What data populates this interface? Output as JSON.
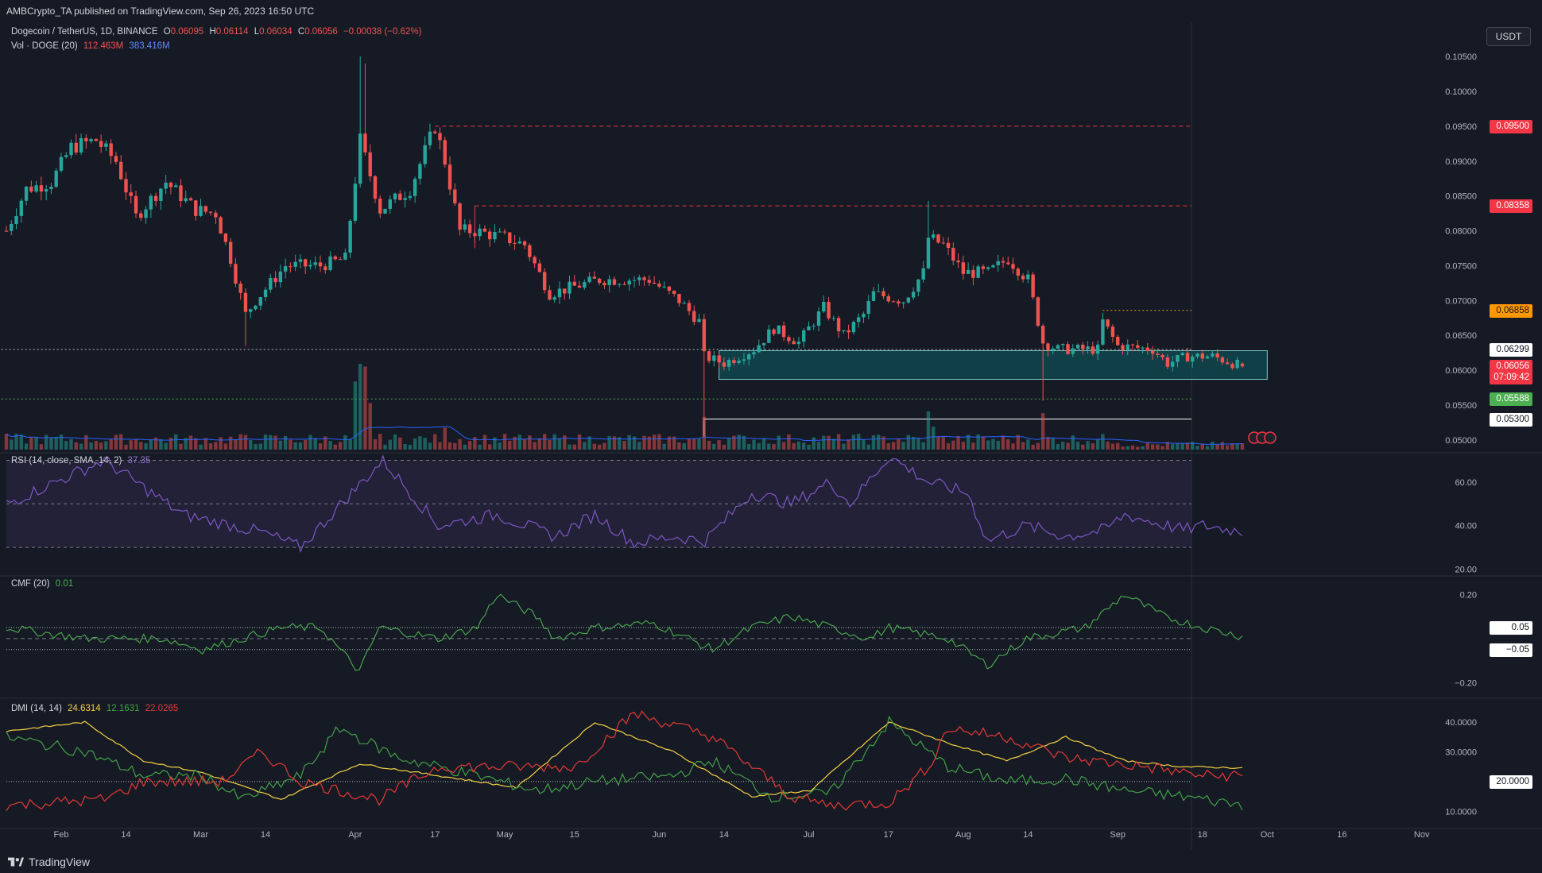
{
  "header": {
    "publish_line": "AMBCrypto_TA published on TradingView.com, Sep 26, 2023 16:50 UTC",
    "currency_button": "USDT"
  },
  "footer": {
    "brand": "TradingView"
  },
  "legend": {
    "symbol": "Dogecoin / TetherUS, 1D, BINANCE",
    "open_label": "O",
    "open": "0.06095",
    "high_label": "H",
    "high": "0.06114",
    "low_label": "L",
    "low": "0.06034",
    "close_label": "C",
    "close": "0.06056",
    "change": "−0.00038 (−0.62%)",
    "vol_title": "Vol · DOGE (20)",
    "vol_value": "112.463M",
    "vol_ma": "383.416M",
    "rsi_title": "RSI (14, close, SMA, 14, 2)",
    "rsi_value": "37.35",
    "cmf_title": "CMF (20)",
    "cmf_value": "0.01",
    "dmi_title": "DMI (14, 14)",
    "dmi_adx": "24.6314",
    "dmi_plus": "12.1631",
    "dmi_minus": "22.0265"
  },
  "price_labels": [
    {
      "text": "0.09500",
      "value": 0.095,
      "bg": "#f23645",
      "fg": "#ffffff"
    },
    {
      "text": "0.08358",
      "value": 0.08358,
      "bg": "#f23645",
      "fg": "#ffffff"
    },
    {
      "text": "0.06858",
      "value": 0.06858,
      "bg": "#ff9800",
      "fg": "#131722"
    },
    {
      "text": "0.06299",
      "value": 0.06299,
      "bg": "#ffffff",
      "fg": "#131722"
    },
    {
      "text": "0.06056",
      "value": 0.06056,
      "bg": "#f23645",
      "fg": "#ffffff",
      "sub": "07:09:42"
    },
    {
      "text": "0.05588",
      "value": 0.05588,
      "bg": "#4caf50",
      "fg": "#ffffff"
    },
    {
      "text": "0.05300",
      "value": 0.053,
      "bg": "#ffffff",
      "fg": "#131722"
    }
  ],
  "indicator_labels": {
    "cmf_upper": "0.05",
    "cmf_lower": "−0.05",
    "dmi_level": "20.0000"
  },
  "colors": {
    "up": "#26a69a",
    "down": "#ef5350",
    "background": "#161a25",
    "rsi": "#7e57c2",
    "cmf": "#4caf50",
    "adx": "#f5d142",
    "di_plus": "#43a047",
    "di_minus": "#e53935",
    "vol_ma": "#2962ff",
    "zone": "#0f5e66"
  },
  "chart_data": [
    {
      "type": "candlestick",
      "title": "Dogecoin / TetherUS, 1D, BINANCE",
      "x_ticks": [
        "Feb",
        "14",
        "Mar",
        "14",
        "Apr",
        "17",
        "May",
        "15",
        "Jun",
        "14",
        "Jul",
        "17",
        "Aug",
        "14",
        "Sep",
        "18",
        "Oct",
        "16",
        "Nov"
      ],
      "y_ticks": [
        "0.10500",
        "0.10000",
        "0.09500",
        "0.09000",
        "0.08500",
        "0.08000",
        "0.07500",
        "0.07000",
        "0.06500",
        "0.06000",
        "0.05500",
        "0.05000"
      ],
      "ylim": [
        0.0485,
        0.1065
      ],
      "horizontal_levels": [
        0.095,
        0.08358,
        0.06858,
        0.06299,
        0.05588,
        0.053
      ],
      "demand_zone": [
        0.0587,
        0.0628
      ],
      "close_anchors": [
        [
          "Jan 21",
          0.08
        ],
        [
          "Jan 25",
          0.086
        ],
        [
          "Jan 30",
          0.087
        ],
        [
          "Feb 3",
          0.092
        ],
        [
          "Feb 8",
          0.093
        ],
        [
          "Feb 12",
          0.09
        ],
        [
          "Feb 16",
          0.082
        ],
        [
          "Feb 22",
          0.087
        ],
        [
          "Feb 28",
          0.083
        ],
        [
          "Mar 4",
          0.0825
        ],
        [
          "Mar 7",
          0.076
        ],
        [
          "Mar 10",
          0.068
        ],
        [
          "Mar 12",
          0.07
        ],
        [
          "Mar 18",
          0.075
        ],
        [
          "Mar 25",
          0.075
        ],
        [
          "Mar 30",
          0.076
        ],
        [
          "Apr 2",
          0.093
        ],
        [
          "Apr 4",
          0.088
        ],
        [
          "Apr 6",
          0.083
        ],
        [
          "Apr 12",
          0.086
        ],
        [
          "Apr 17",
          0.095
        ],
        [
          "Apr 19",
          0.09
        ],
        [
          "Apr 22",
          0.08
        ],
        [
          "Apr 25",
          0.08
        ],
        [
          "May 1",
          0.079
        ],
        [
          "May 5",
          0.078
        ],
        [
          "May 10",
          0.071
        ],
        [
          "May 20",
          0.073
        ],
        [
          "May 30",
          0.073
        ],
        [
          "Jun 5",
          0.07
        ],
        [
          "Jun 9",
          0.067
        ],
        [
          "Jun 10",
          0.062
        ],
        [
          "Jun 14",
          0.061
        ],
        [
          "Jun 20",
          0.063
        ],
        [
          "Jun 24",
          0.066
        ],
        [
          "Jun 29",
          0.064
        ],
        [
          "Jul 4",
          0.069
        ],
        [
          "Jul 8",
          0.065
        ],
        [
          "Jul 12",
          0.068
        ],
        [
          "Jul 14",
          0.071
        ],
        [
          "Jul 20",
          0.07
        ],
        [
          "Jul 24",
          0.074
        ],
        [
          "Jul 25",
          0.079
        ],
        [
          "Jul 28",
          0.078
        ],
        [
          "Aug 1",
          0.074
        ],
        [
          "Aug 6",
          0.074
        ],
        [
          "Aug 10",
          0.076
        ],
        [
          "Aug 14",
          0.073
        ],
        [
          "Aug 17",
          0.064
        ],
        [
          "Aug 20",
          0.063
        ],
        [
          "Aug 28",
          0.063
        ],
        [
          "Aug 29",
          0.067
        ],
        [
          "Sep 1",
          0.0635
        ],
        [
          "Sep 8",
          0.063
        ],
        [
          "Sep 11",
          0.061
        ],
        [
          "Sep 15",
          0.062
        ],
        [
          "Sep 20",
          0.062
        ],
        [
          "Sep 26",
          0.06056
        ]
      ],
      "volume_ma_last": 383.416
    },
    {
      "type": "line",
      "title": "RSI (14, close, SMA, 14, 2)",
      "y_ticks": [
        "60.00",
        "40.00",
        "20.00"
      ],
      "ylim": [
        18,
        72
      ],
      "bands": [
        30,
        50,
        70
      ],
      "anchors": [
        [
          0,
          50
        ],
        [
          25,
          70
        ],
        [
          45,
          45
        ],
        [
          65,
          37
        ],
        [
          75,
          30
        ],
        [
          88,
          55
        ],
        [
          96,
          70
        ],
        [
          110,
          40
        ],
        [
          125,
          45
        ],
        [
          140,
          35
        ],
        [
          150,
          45
        ],
        [
          160,
          32
        ],
        [
          170,
          35
        ],
        [
          178,
          33
        ],
        [
          190,
          55
        ],
        [
          200,
          50
        ],
        [
          210,
          60
        ],
        [
          215,
          50
        ],
        [
          225,
          72
        ],
        [
          235,
          60
        ],
        [
          245,
          55
        ],
        [
          250,
          33
        ],
        [
          260,
          40
        ],
        [
          270,
          35
        ],
        [
          280,
          38
        ],
        [
          285,
          45
        ],
        [
          300,
          38
        ],
        [
          305,
          40
        ],
        [
          315,
          37.35
        ]
      ]
    },
    {
      "type": "line",
      "title": "CMF (20)",
      "y_ticks": [
        "0.20",
        "−0.20"
      ],
      "ylim": [
        -0.26,
        0.27
      ],
      "levels": [
        0.05,
        0,
        -0.05
      ],
      "anchors": [
        [
          0,
          0.05
        ],
        [
          20,
          0.0
        ],
        [
          40,
          0.0
        ],
        [
          50,
          -0.05
        ],
        [
          60,
          0.0
        ],
        [
          70,
          0.05
        ],
        [
          80,
          0.05
        ],
        [
          90,
          -0.15
        ],
        [
          95,
          0.05
        ],
        [
          110,
          0.0
        ],
        [
          120,
          0.05
        ],
        [
          125,
          0.2
        ],
        [
          135,
          0.1
        ],
        [
          140,
          0.0
        ],
        [
          150,
          0.05
        ],
        [
          165,
          0.07
        ],
        [
          180,
          -0.05
        ],
        [
          190,
          0.05
        ],
        [
          200,
          0.1
        ],
        [
          210,
          0.05
        ],
        [
          220,
          0.0
        ],
        [
          225,
          0.05
        ],
        [
          240,
          0.0
        ],
        [
          250,
          -0.12
        ],
        [
          260,
          0.0
        ],
        [
          275,
          0.05
        ],
        [
          285,
          0.2
        ],
        [
          295,
          0.1
        ],
        [
          305,
          0.05
        ],
        [
          315,
          0.01
        ]
      ]
    },
    {
      "type": "line",
      "title": "DMI (14, 14)",
      "y_ticks": [
        "40.0000",
        "30.0000",
        "20.0000",
        "10.0000"
      ],
      "ylim": [
        5,
        47
      ],
      "levels": [
        20
      ],
      "series": [
        {
          "name": "ADX",
          "anchors": [
            [
              0,
              37
            ],
            [
              20,
              40
            ],
            [
              35,
              27
            ],
            [
              50,
              23
            ],
            [
              70,
              14
            ],
            [
              90,
              26
            ],
            [
              110,
              22
            ],
            [
              130,
              18
            ],
            [
              150,
              40
            ],
            [
              170,
              30
            ],
            [
              190,
              15
            ],
            [
              205,
              17
            ],
            [
              225,
              40
            ],
            [
              240,
              33
            ],
            [
              255,
              27
            ],
            [
              270,
              35
            ],
            [
              285,
              27
            ],
            [
              300,
              25
            ],
            [
              315,
              24.63
            ]
          ]
        },
        {
          "name": "+DI",
          "anchors": [
            [
              0,
              35
            ],
            [
              20,
              30
            ],
            [
              35,
              22
            ],
            [
              50,
              22
            ],
            [
              60,
              14
            ],
            [
              75,
              22
            ],
            [
              85,
              38
            ],
            [
              100,
              28
            ],
            [
              120,
              22
            ],
            [
              135,
              17
            ],
            [
              150,
              20
            ],
            [
              170,
              22
            ],
            [
              180,
              27
            ],
            [
              195,
              15
            ],
            [
              210,
              16
            ],
            [
              225,
              40
            ],
            [
              240,
              25
            ],
            [
              255,
              20
            ],
            [
              270,
              21
            ],
            [
              285,
              17
            ],
            [
              300,
              15
            ],
            [
              315,
              12.16
            ]
          ]
        },
        {
          "name": "−DI",
          "anchors": [
            [
              0,
              12
            ],
            [
              25,
              14
            ],
            [
              35,
              20
            ],
            [
              55,
              20
            ],
            [
              65,
              30
            ],
            [
              75,
              20
            ],
            [
              95,
              14
            ],
            [
              110,
              25
            ],
            [
              125,
              25
            ],
            [
              145,
              25
            ],
            [
              160,
              43
            ],
            [
              180,
              35
            ],
            [
              200,
              15
            ],
            [
              210,
              12
            ],
            [
              225,
              13
            ],
            [
              235,
              25
            ],
            [
              240,
              38
            ],
            [
              255,
              35
            ],
            [
              270,
              28
            ],
            [
              290,
              25
            ],
            [
              305,
              22
            ],
            [
              315,
              22.03
            ]
          ]
        }
      ]
    }
  ]
}
